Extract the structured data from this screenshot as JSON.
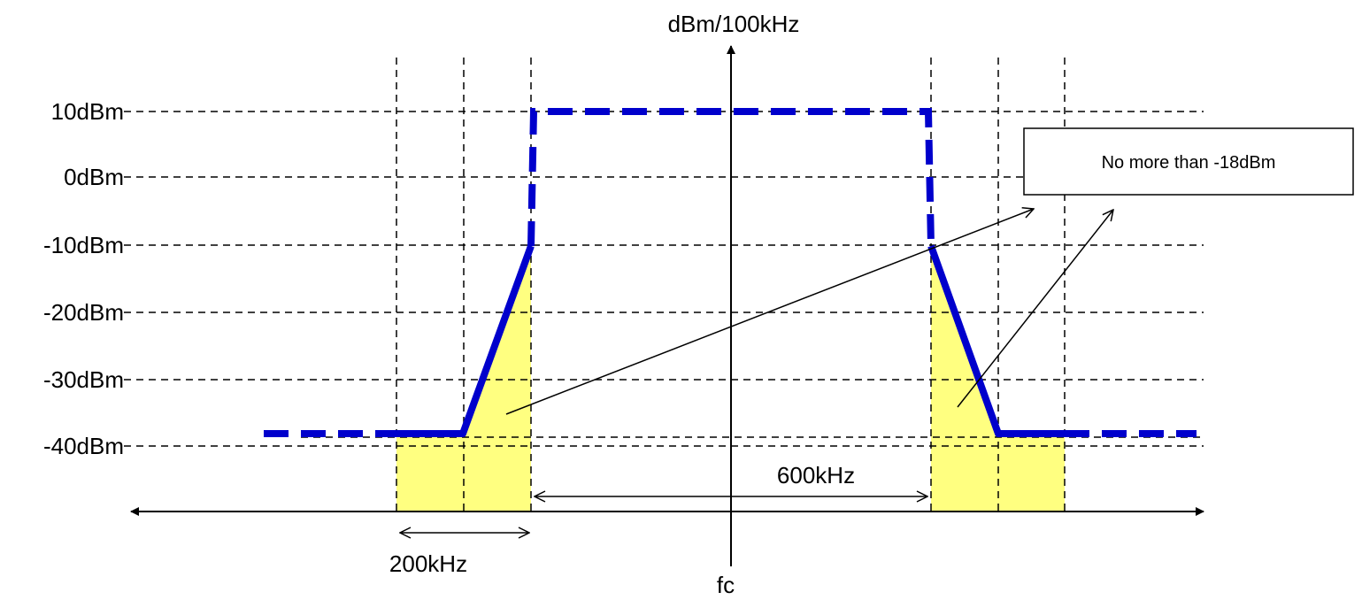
{
  "diagram": {
    "y_axis_label": "dBm/100kHz",
    "x_axis_center_label": "fc",
    "y_levels": [
      "10dBm",
      "0dBm",
      "-10dBm",
      "-20dBm",
      "-30dBm",
      "-40dBm"
    ],
    "dimension_labels": {
      "span_200": "200kHz",
      "span_600": "600kHz"
    },
    "callout": {
      "text": "No more than -18dBm"
    },
    "colors": {
      "mask_line": "#0000cc",
      "highlight_fill": "#ffff80",
      "grid": "#000000",
      "callout_border": "#000000",
      "callout_bg": "#ffffff"
    }
  }
}
